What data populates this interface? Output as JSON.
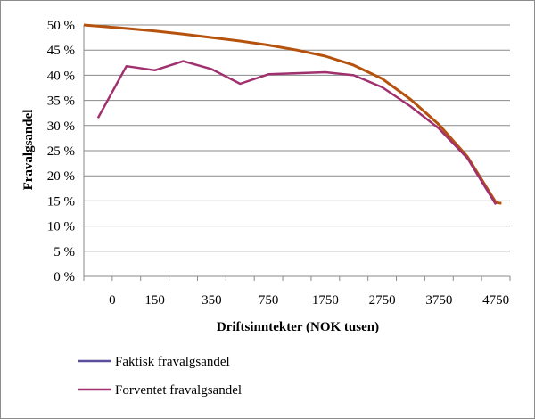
{
  "chart_data": {
    "type": "line",
    "xlabel": "Driftsinntekter (NOK tusen)",
    "ylabel": "Fravalgsandel",
    "ylim": [
      0,
      0.5
    ],
    "y_ticks": [
      "0 %",
      "5 %",
      "10 %",
      "15 %",
      "20 %",
      "25 %",
      "30 %",
      "35 %",
      "40 %",
      "45 %",
      "50 %"
    ],
    "x_tick_labels": [
      "0",
      "150",
      "350",
      "750",
      "1750",
      "2750",
      "3750",
      "4750"
    ],
    "grid": "horizontal",
    "legend_position": "bottom-left",
    "series": [
      {
        "name": "Faktisk fravalgsandel",
        "color": "#5b4f9e",
        "points": [
          [
            0,
            0.315
          ],
          [
            1,
            0.418
          ],
          [
            2,
            0.41
          ],
          [
            3,
            0.428
          ],
          [
            4,
            0.412
          ],
          [
            5,
            0.383
          ],
          [
            6,
            0.402
          ],
          [
            7,
            0.404
          ],
          [
            8,
            0.406
          ],
          [
            9,
            0.4
          ],
          [
            10,
            0.376
          ],
          [
            11,
            0.338
          ],
          [
            12,
            0.294
          ],
          [
            13,
            0.235
          ],
          [
            14,
            0.143
          ]
        ]
      },
      {
        "name": "Forventet fravalgsandel",
        "color": "#b5520e",
        "points": [
          [
            -0.5,
            0.5
          ],
          [
            1,
            0.493
          ],
          [
            2,
            0.488
          ],
          [
            3,
            0.482
          ],
          [
            4,
            0.475
          ],
          [
            5,
            0.468
          ],
          [
            6,
            0.46
          ],
          [
            7,
            0.45
          ],
          [
            8,
            0.438
          ],
          [
            9,
            0.42
          ],
          [
            10,
            0.393
          ],
          [
            11,
            0.352
          ],
          [
            12,
            0.302
          ],
          [
            13,
            0.238
          ],
          [
            14,
            0.147
          ],
          [
            14.2,
            0.145
          ]
        ]
      }
    ],
    "legend_line_color": "#a0306e"
  }
}
